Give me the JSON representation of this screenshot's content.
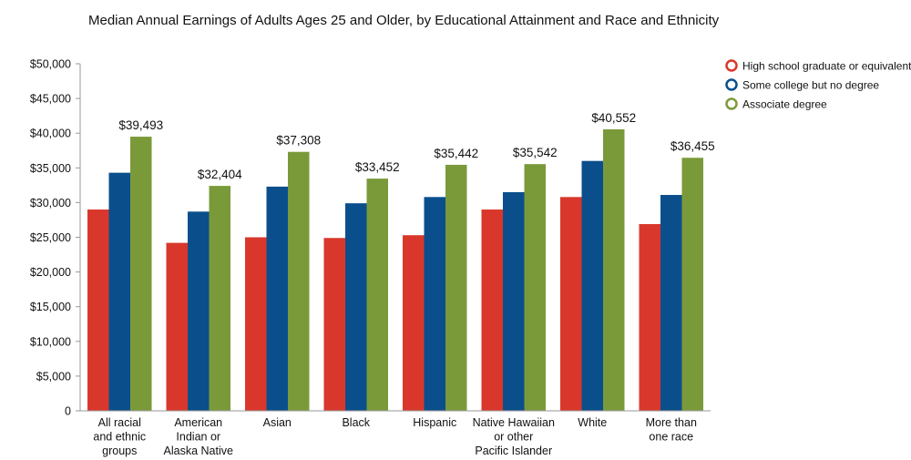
{
  "chart_data": {
    "type": "bar",
    "title": "Median Annual Earnings of Adults Ages 25 and Older, by Educational Attainment and Race and Ethnicity",
    "xlabel": "",
    "ylabel": "",
    "ylim": [
      0,
      50000
    ],
    "yticks": [
      "0",
      "$5,000",
      "$10,000",
      "$15,000",
      "$20,000",
      "$25,000",
      "$30,000",
      "$35,000",
      "$40,000",
      "$45,000",
      "$50,000"
    ],
    "categories": [
      [
        "All racial",
        "and ethnic",
        "groups"
      ],
      [
        "American",
        "Indian or",
        "Alaska Native"
      ],
      [
        "Asian"
      ],
      [
        "Black"
      ],
      [
        "Hispanic"
      ],
      [
        "Native Hawaiian",
        "or other",
        "Pacific Islander"
      ],
      [
        "White"
      ],
      [
        "More than",
        "one race"
      ]
    ],
    "series": [
      {
        "name": "High school graduate or equivalent",
        "color": "#d9372b",
        "values": [
          29000,
          24200,
          25000,
          24900,
          25300,
          29000,
          30800,
          26900
        ]
      },
      {
        "name": "Some college but no degree",
        "color": "#0a4f8c",
        "values": [
          34300,
          28700,
          32300,
          29900,
          30800,
          31500,
          36000,
          31100
        ]
      },
      {
        "name": "Associate degree",
        "color": "#7a9a3a",
        "values": [
          39493,
          32404,
          37308,
          33452,
          35442,
          35542,
          40552,
          36455
        ]
      }
    ],
    "data_labels": [
      "$39,493",
      "$32,404",
      "$37,308",
      "$33,452",
      "$35,442",
      "$35,542",
      "$40,552",
      "$36,455"
    ],
    "legend_position": "top-right",
    "grid": false
  }
}
